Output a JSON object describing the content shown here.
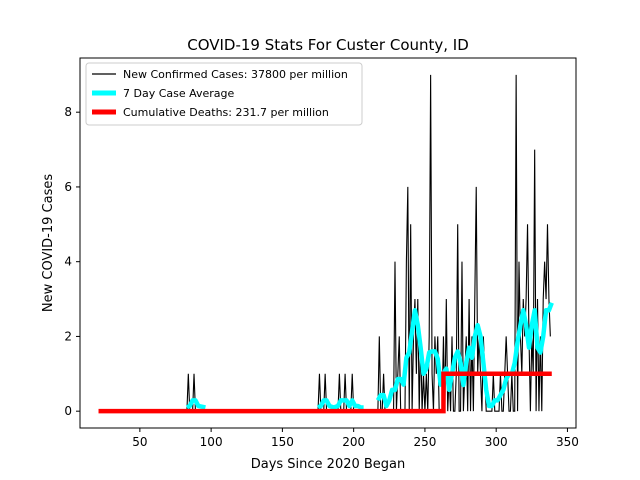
{
  "chart_data": {
    "type": "line",
    "title": "COVID-19 Stats For Custer County, ID",
    "xlabel": "Days Since 2020 Began",
    "ylabel": "New COVID-19 Cases",
    "xlim": [
      8,
      356
    ],
    "ylim": [
      -0.45,
      9.45
    ],
    "xticks": [
      50,
      100,
      150,
      200,
      250,
      300,
      350
    ],
    "yticks": [
      0,
      2,
      4,
      6,
      8
    ],
    "grid": false,
    "legend_position": "top-left",
    "series": [
      {
        "name": "New Confirmed Cases: 37800 per million",
        "color": "#000000",
        "points": [
          [
            83,
            0
          ],
          [
            84,
            1
          ],
          [
            85,
            0
          ],
          [
            87,
            0
          ],
          [
            88,
            1
          ],
          [
            89,
            0
          ],
          [
            91,
            0
          ],
          [
            175,
            0
          ],
          [
            176,
            1
          ],
          [
            177,
            0
          ],
          [
            179,
            0
          ],
          [
            180,
            1
          ],
          [
            181,
            0
          ],
          [
            189,
            0
          ],
          [
            190,
            1
          ],
          [
            191,
            0
          ],
          [
            193,
            0
          ],
          [
            194,
            1
          ],
          [
            195,
            0
          ],
          [
            198,
            0
          ],
          [
            199,
            1
          ],
          [
            200,
            0
          ],
          [
            205,
            0
          ],
          [
            217,
            0
          ],
          [
            218,
            2
          ],
          [
            219,
            0
          ],
          [
            220,
            0
          ],
          [
            221,
            1
          ],
          [
            222,
            0
          ],
          [
            225,
            0
          ],
          [
            226,
            0
          ],
          [
            227,
            0
          ],
          [
            228,
            0
          ],
          [
            229,
            4
          ],
          [
            230,
            0
          ],
          [
            232,
            2
          ],
          [
            233,
            0
          ],
          [
            236,
            0
          ],
          [
            237,
            4
          ],
          [
            238,
            6
          ],
          [
            239,
            0
          ],
          [
            240,
            5
          ],
          [
            241,
            0
          ],
          [
            242,
            2
          ],
          [
            243,
            3
          ],
          [
            244,
            1
          ],
          [
            245,
            3
          ],
          [
            246,
            0
          ],
          [
            247,
            2
          ],
          [
            248,
            0
          ],
          [
            249,
            1
          ],
          [
            250,
            0
          ],
          [
            251,
            1
          ],
          [
            252,
            0
          ],
          [
            253,
            2
          ],
          [
            254,
            9
          ],
          [
            255,
            1
          ],
          [
            256,
            0
          ],
          [
            257,
            2
          ],
          [
            258,
            1
          ],
          [
            259,
            2
          ],
          [
            260,
            0
          ],
          [
            262,
            0
          ],
          [
            263,
            2
          ],
          [
            264,
            0
          ],
          [
            265,
            3
          ],
          [
            266,
            0
          ],
          [
            267,
            1
          ],
          [
            268,
            0
          ],
          [
            269,
            2
          ],
          [
            270,
            0
          ],
          [
            271,
            0
          ],
          [
            272,
            1
          ],
          [
            273,
            5
          ],
          [
            274,
            0
          ],
          [
            275,
            0
          ],
          [
            276,
            4
          ],
          [
            277,
            0
          ],
          [
            278,
            1
          ],
          [
            279,
            2
          ],
          [
            280,
            0
          ],
          [
            281,
            3
          ],
          [
            282,
            0
          ],
          [
            283,
            2
          ],
          [
            284,
            0
          ],
          [
            285,
            3
          ],
          [
            286,
            6
          ],
          [
            287,
            1
          ],
          [
            288,
            2
          ],
          [
            289,
            1
          ],
          [
            290,
            0
          ],
          [
            291,
            2
          ],
          [
            292,
            1
          ],
          [
            293,
            0
          ],
          [
            296,
            0
          ],
          [
            297,
            0
          ],
          [
            298,
            1
          ],
          [
            299,
            0
          ],
          [
            302,
            0
          ],
          [
            303,
            1
          ],
          [
            304,
            0
          ],
          [
            305,
            0
          ],
          [
            306,
            1
          ],
          [
            307,
            2
          ],
          [
            308,
            1
          ],
          [
            309,
            0
          ],
          [
            310,
            0
          ],
          [
            311,
            1
          ],
          [
            312,
            0
          ],
          [
            313,
            0
          ],
          [
            314,
            9
          ],
          [
            315,
            0
          ],
          [
            316,
            4
          ],
          [
            317,
            2
          ],
          [
            318,
            1
          ],
          [
            319,
            3
          ],
          [
            320,
            2
          ],
          [
            321,
            3
          ],
          [
            322,
            5
          ],
          [
            323,
            2
          ],
          [
            324,
            0
          ],
          [
            325,
            2
          ],
          [
            326,
            1
          ],
          [
            327,
            7
          ],
          [
            328,
            0
          ],
          [
            329,
            3
          ],
          [
            330,
            0
          ],
          [
            331,
            2
          ],
          [
            332,
            0
          ],
          [
            333,
            3
          ],
          [
            334,
            4
          ],
          [
            335,
            3
          ],
          [
            336,
            5
          ],
          [
            337,
            3
          ],
          [
            338,
            2
          ]
        ]
      },
      {
        "name": "7 Day Case Average",
        "color": "#00ffff",
        "segments": [
          [
            [
              83,
              0.1
            ],
            [
              85,
              0.14
            ],
            [
              87,
              0.29
            ],
            [
              89,
              0.29
            ],
            [
              91,
              0.14
            ],
            [
              96,
              0.1
            ]
          ],
          [
            [
              175,
              0.1
            ],
            [
              177,
              0.14
            ],
            [
              179,
              0.29
            ],
            [
              181,
              0.29
            ],
            [
              183,
              0.14
            ],
            [
              186,
              0.1
            ],
            [
              189,
              0.14
            ],
            [
              191,
              0.29
            ],
            [
              193,
              0.29
            ],
            [
              195,
              0.29
            ],
            [
              197,
              0.14
            ],
            [
              199,
              0.29
            ],
            [
              201,
              0.14
            ],
            [
              203,
              0.14
            ],
            [
              205,
              0.1
            ],
            [
              207,
              0.1
            ]
          ],
          [
            [
              217,
              0.29
            ],
            [
              219,
              0.43
            ],
            [
              221,
              0.43
            ],
            [
              223,
              0.14
            ],
            [
              225,
              0.29
            ],
            [
              227,
              0.57
            ],
            [
              229,
              0.57
            ],
            [
              231,
              0.86
            ],
            [
              233,
              0.86
            ],
            [
              235,
              0.71
            ],
            [
              237,
              1.43
            ],
            [
              239,
              1.57
            ],
            [
              241,
              2.14
            ],
            [
              243,
              2.7
            ],
            [
              245,
              2.3
            ],
            [
              247,
              1.7
            ],
            [
              249,
              1.0
            ],
            [
              251,
              1.14
            ],
            [
              253,
              1.57
            ],
            [
              255,
              1.6
            ],
            [
              257,
              1.6
            ],
            [
              259,
              1.4
            ],
            [
              261,
              0.71
            ],
            [
              263,
              1.0
            ],
            [
              265,
              1.14
            ],
            [
              267,
              0.57
            ],
            [
              269,
              1.0
            ],
            [
              271,
              1.43
            ],
            [
              273,
              1.6
            ],
            [
              275,
              1.3
            ],
            [
              277,
              0.7
            ],
            [
              279,
              1.3
            ],
            [
              281,
              1.7
            ],
            [
              283,
              1.43
            ],
            [
              285,
              2.0
            ],
            [
              287,
              2.3
            ],
            [
              289,
              2.0
            ],
            [
              291,
              1.3
            ],
            [
              293,
              0.57
            ],
            [
              295,
              0.14
            ],
            [
              297,
              0.14
            ],
            [
              299,
              0.29
            ],
            [
              301,
              0.29
            ],
            [
              303,
              0.43
            ],
            [
              305,
              0.57
            ],
            [
              307,
              0.86
            ],
            [
              309,
              1.0
            ],
            [
              311,
              1.0
            ],
            [
              313,
              1.29
            ],
            [
              315,
              1.86
            ],
            [
              317,
              2.3
            ],
            [
              319,
              2.7
            ],
            [
              321,
              2.3
            ],
            [
              323,
              1.7
            ],
            [
              325,
              2.3
            ],
            [
              327,
              2.7
            ],
            [
              329,
              1.7
            ],
            [
              331,
              1.57
            ],
            [
              333,
              2.0
            ],
            [
              335,
              2.7
            ],
            [
              337,
              2.7
            ],
            [
              339,
              2.9
            ]
          ]
        ]
      },
      {
        "name": "Cumulative Deaths: 231.7 per million",
        "color": "#ff0000",
        "points": [
          [
            21,
            0
          ],
          [
            263,
            0
          ],
          [
            263,
            1
          ],
          [
            339,
            1
          ]
        ]
      }
    ]
  }
}
